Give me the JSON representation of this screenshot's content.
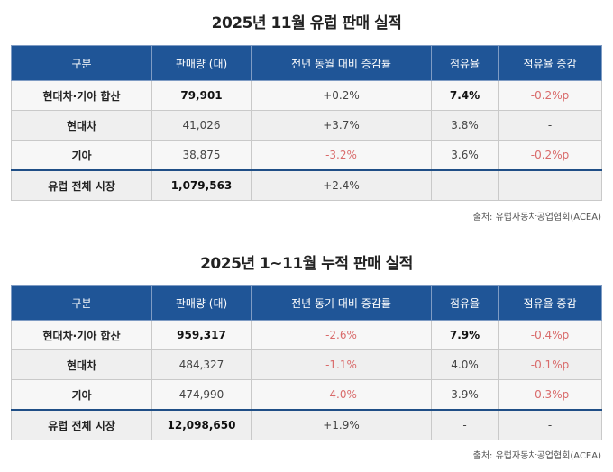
{
  "monthly": {
    "title": "2025년 11월 유럽 판매 실적",
    "headers": [
      "구분",
      "판매량 (대)",
      "전년 동월 대비 증감률",
      "점유율",
      "점유율 증감"
    ],
    "rows": [
      {
        "label": "현대차·기아 합산",
        "sales": "79,901",
        "yoy": "+0.2%",
        "share": "7.4%",
        "share_change": "-0.2%p"
      },
      {
        "label": "현대차",
        "sales": "41,026",
        "yoy": "+3.7%",
        "share": "3.8%",
        "share_change": "-"
      },
      {
        "label": "기아",
        "sales": "38,875",
        "yoy": "-3.2%",
        "share": "3.6%",
        "share_change": "-0.2%p"
      },
      {
        "label": "유럽 전체 시장",
        "sales": "1,079,563",
        "yoy": "+2.4%",
        "share": "-",
        "share_change": "-"
      }
    ],
    "source": "출처: 유럽자동차공업협회(ACEA)"
  },
  "cumulative": {
    "title": "2025년 1~11월 누적 판매 실적",
    "headers": [
      "구분",
      "판매량 (대)",
      "전년 동기 대비 증감률",
      "점유율",
      "점유율 증감"
    ],
    "rows": [
      {
        "label": "현대차·기아 합산",
        "sales": "959,317",
        "yoy": "-2.6%",
        "share": "7.9%",
        "share_change": "-0.4%p"
      },
      {
        "label": "현대차",
        "sales": "484,327",
        "yoy": "-1.1%",
        "share": "4.0%",
        "share_change": "-0.1%p"
      },
      {
        "label": "기아",
        "sales": "474,990",
        "yoy": "-4.0%",
        "share": "3.9%",
        "share_change": "-0.3%p"
      },
      {
        "label": "유럽 전체 시장",
        "sales": "12,098,650",
        "yoy": "+1.9%",
        "share": "-",
        "share_change": "-"
      }
    ],
    "source": "출처: 유럽자동차공업협회(ACEA)"
  },
  "colors": {
    "header_bg": "#1f5597",
    "negative": "#d96b6b"
  }
}
